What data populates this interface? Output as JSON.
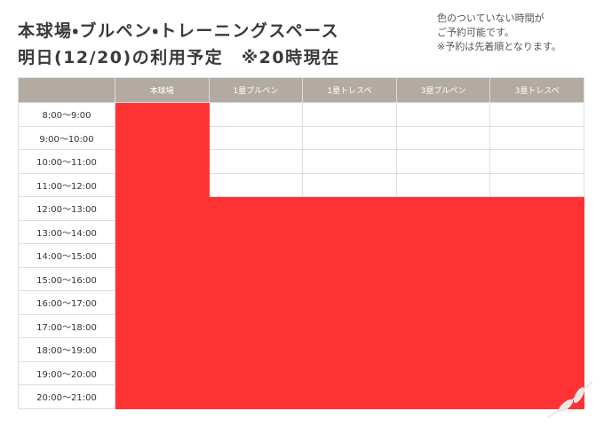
{
  "header": {
    "title_lines": [
      "本球場・ブルペン・トレーニングスペース",
      "明日(12/20)の利用予定　※20時現在"
    ],
    "note_lines": [
      "色のついていない時間が",
      "ご予約可能です。",
      "※予約は先着順となります。"
    ]
  },
  "table": {
    "booked_color": "#ff3333",
    "columns": [
      "本球場",
      "1塁ブルペン",
      "1塁トレスペ",
      "3塁ブルペン",
      "3塁トレスペ"
    ],
    "rows": [
      {
        "time": "8:00〜9:00",
        "booked": [
          true,
          false,
          false,
          false,
          false
        ]
      },
      {
        "time": "9:00〜10:00",
        "booked": [
          true,
          false,
          false,
          false,
          false
        ]
      },
      {
        "time": "10:00〜11:00",
        "booked": [
          true,
          false,
          false,
          false,
          false
        ]
      },
      {
        "time": "11:00〜12:00",
        "booked": [
          true,
          false,
          false,
          false,
          false
        ]
      },
      {
        "time": "12:00〜13:00",
        "booked": [
          true,
          true,
          true,
          true,
          true
        ]
      },
      {
        "time": "13:00〜14:00",
        "booked": [
          true,
          true,
          true,
          true,
          true
        ]
      },
      {
        "time": "14:00〜15:00",
        "booked": [
          true,
          true,
          true,
          true,
          true
        ]
      },
      {
        "time": "15:00〜16:00",
        "booked": [
          true,
          true,
          true,
          true,
          true
        ]
      },
      {
        "time": "16:00〜17:00",
        "booked": [
          true,
          true,
          true,
          true,
          true
        ]
      },
      {
        "time": "17:00〜18:00",
        "booked": [
          true,
          true,
          true,
          true,
          true
        ]
      },
      {
        "time": "18:00〜19:00",
        "booked": [
          true,
          true,
          true,
          true,
          true
        ]
      },
      {
        "time": "19:00〜20:00",
        "booked": [
          true,
          true,
          true,
          true,
          true
        ]
      },
      {
        "time": "20:00〜21:00",
        "booked": [
          true,
          true,
          true,
          true,
          true
        ]
      }
    ]
  }
}
